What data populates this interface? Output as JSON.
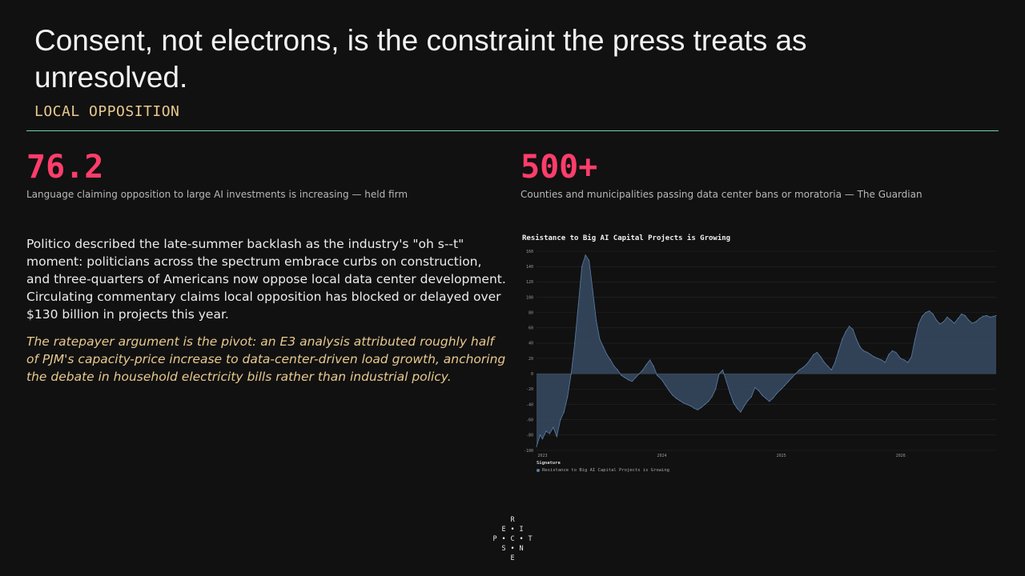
{
  "slide": {
    "title": "Consent, not electrons, is the constraint the press treats as unresolved.",
    "subtitle": "LOCAL OPPOSITION"
  },
  "stats": [
    {
      "value": "76.2",
      "description": "Language claiming opposition to large AI investments is increasing — held firm"
    },
    {
      "value": "500+",
      "description": "Counties and municipalities passing data center bans or moratoria — The Guardian"
    }
  ],
  "body": {
    "paragraph": "Politico described the late-summer backlash as the industry's \"oh s--t\" moment: politicians across the spectrum embrace curbs on construction, and three-quarters of Americans now oppose local data center development. Circulating commentary claims local opposition has blocked or delayed over $130 billion in projects this year.",
    "italic": "The ratepayer argument is the pivot: an E3 analysis attributed roughly half of PJM's capacity-price increase to data-center-driven load growth, anchoring the debate in household electricity bills rather than industrial policy."
  },
  "colors": {
    "accent_number": "#ff3d6b",
    "accent_gold": "#e8c98e",
    "rule": "#6fd1b1",
    "series_fill": "#34465c",
    "series_line": "#5b7ea6"
  },
  "chart_data": {
    "type": "area",
    "title": "Resistance to Big AI Capital Projects is Growing",
    "xlabel": "",
    "ylabel": "",
    "ylim": [
      -100,
      160
    ],
    "yticks": [
      160,
      140,
      120,
      100,
      80,
      60,
      40,
      20,
      0,
      -20,
      -40,
      -60,
      -80,
      -100
    ],
    "xlim": [
      2022.95,
      2026.8
    ],
    "xticks": [
      {
        "value": 2023,
        "label": "2023"
      },
      {
        "value": 2024,
        "label": "2024"
      },
      {
        "value": 2025,
        "label": "2025"
      },
      {
        "value": 2026,
        "label": "2026"
      }
    ],
    "grid": true,
    "legend": {
      "title": "Signature",
      "position": "bottom-left"
    },
    "series": [
      {
        "name": "Resistance to Big AI Capital Projects is Growing",
        "x": [
          2022.95,
          2022.98,
          2023.0,
          2023.03,
          2023.06,
          2023.09,
          2023.12,
          2023.15,
          2023.18,
          2023.21,
          2023.24,
          2023.27,
          2023.3,
          2023.33,
          2023.36,
          2023.39,
          2023.42,
          2023.45,
          2023.48,
          2023.51,
          2023.54,
          2023.57,
          2023.6,
          2023.63,
          2023.66,
          2023.69,
          2023.72,
          2023.75,
          2023.78,
          2023.81,
          2023.84,
          2023.87,
          2023.9,
          2023.93,
          2023.96,
          2024.0,
          2024.03,
          2024.06,
          2024.09,
          2024.12,
          2024.15,
          2024.18,
          2024.21,
          2024.24,
          2024.27,
          2024.3,
          2024.33,
          2024.36,
          2024.39,
          2024.42,
          2024.45,
          2024.48,
          2024.51,
          2024.54,
          2024.57,
          2024.6,
          2024.63,
          2024.66,
          2024.69,
          2024.72,
          2024.75,
          2024.78,
          2024.81,
          2024.84,
          2024.87,
          2024.9,
          2024.93,
          2024.96,
          2025.0,
          2025.03,
          2025.06,
          2025.09,
          2025.12,
          2025.15,
          2025.18,
          2025.21,
          2025.24,
          2025.27,
          2025.3,
          2025.33,
          2025.36,
          2025.39,
          2025.42,
          2025.45,
          2025.48,
          2025.51,
          2025.54,
          2025.57,
          2025.6,
          2025.63,
          2025.66,
          2025.69,
          2025.72,
          2025.75,
          2025.78,
          2025.81,
          2025.84,
          2025.87,
          2025.9,
          2025.93,
          2025.96,
          2026.0,
          2026.03,
          2026.06,
          2026.09,
          2026.12,
          2026.15,
          2026.18,
          2026.21,
          2026.24,
          2026.27,
          2026.3,
          2026.33,
          2026.36,
          2026.39,
          2026.42,
          2026.45,
          2026.48,
          2026.51,
          2026.54,
          2026.57,
          2026.6,
          2026.63,
          2026.66,
          2026.69,
          2026.72,
          2026.75,
          2026.78,
          2026.8
        ],
        "values": [
          -95,
          -80,
          -85,
          -75,
          -78,
          -70,
          -82,
          -60,
          -50,
          -30,
          0,
          40,
          90,
          140,
          155,
          148,
          110,
          70,
          45,
          35,
          25,
          18,
          10,
          5,
          -2,
          -5,
          -8,
          -10,
          -5,
          0,
          5,
          12,
          18,
          10,
          -2,
          -8,
          -15,
          -22,
          -28,
          -32,
          -35,
          -38,
          -40,
          -42,
          -45,
          -47,
          -44,
          -40,
          -36,
          -30,
          -20,
          0,
          5,
          -10,
          -25,
          -38,
          -45,
          -50,
          -42,
          -35,
          -30,
          -18,
          -22,
          -28,
          -32,
          -36,
          -32,
          -26,
          -20,
          -15,
          -10,
          -5,
          0,
          5,
          8,
          12,
          18,
          25,
          28,
          22,
          15,
          10,
          5,
          15,
          30,
          45,
          55,
          62,
          58,
          45,
          35,
          30,
          28,
          25,
          22,
          20,
          18,
          15,
          25,
          30,
          28,
          20,
          18,
          15,
          22,
          45,
          65,
          75,
          80,
          82,
          78,
          70,
          65,
          68,
          74,
          70,
          66,
          72,
          78,
          76,
          70,
          66,
          68,
          72,
          75,
          76,
          74,
          75,
          76
        ]
      }
    ]
  },
  "logo": {
    "letters": [
      "R",
      "E",
      "I",
      "P",
      "C",
      "T",
      "S",
      "N",
      "E"
    ]
  }
}
